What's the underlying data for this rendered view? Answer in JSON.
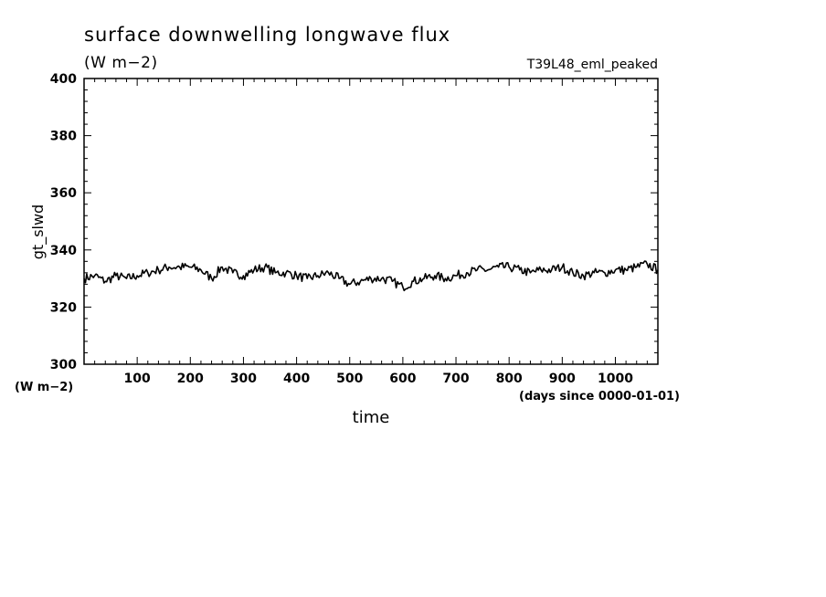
{
  "chart_data": {
    "type": "line",
    "title": "surface downwelling longwave flux",
    "units": "(W m−2)",
    "run_label": "T39L48_eml_peaked",
    "xlabel": "time",
    "x_units": "(days since 0000-01-01)",
    "ylabel": "gt_slwd",
    "y_units": "(W m−2)",
    "xlim": [
      0,
      1080
    ],
    "ylim": [
      300,
      400
    ],
    "x_ticks": [
      100,
      200,
      300,
      400,
      500,
      600,
      700,
      800,
      900,
      1000
    ],
    "y_ticks": [
      300,
      320,
      340,
      360,
      380,
      400
    ],
    "grid": false,
    "series": [
      {
        "color": "#000000",
        "x": [
          0,
          20,
          40,
          60,
          80,
          100,
          120,
          140,
          160,
          180,
          200,
          220,
          240,
          260,
          280,
          300,
          320,
          340,
          360,
          380,
          400,
          420,
          440,
          460,
          480,
          500,
          520,
          540,
          560,
          580,
          600,
          620,
          640,
          660,
          680,
          700,
          720,
          740,
          760,
          780,
          800,
          820,
          840,
          860,
          880,
          900,
          920,
          940,
          960,
          980,
          1000,
          1020,
          1040,
          1060,
          1080
        ],
        "y": [
          330,
          331,
          329,
          331,
          330,
          331,
          332,
          333,
          334,
          334,
          334,
          333,
          330,
          334,
          332,
          331,
          333,
          334,
          332,
          332,
          331,
          330,
          331,
          332,
          330,
          328,
          329,
          330,
          330,
          329,
          327,
          329,
          330,
          331,
          330,
          331,
          332,
          333,
          333,
          334,
          334,
          333,
          332,
          333,
          333,
          334,
          332,
          331,
          332,
          332,
          333,
          333,
          334,
          335,
          333
        ]
      }
    ]
  }
}
